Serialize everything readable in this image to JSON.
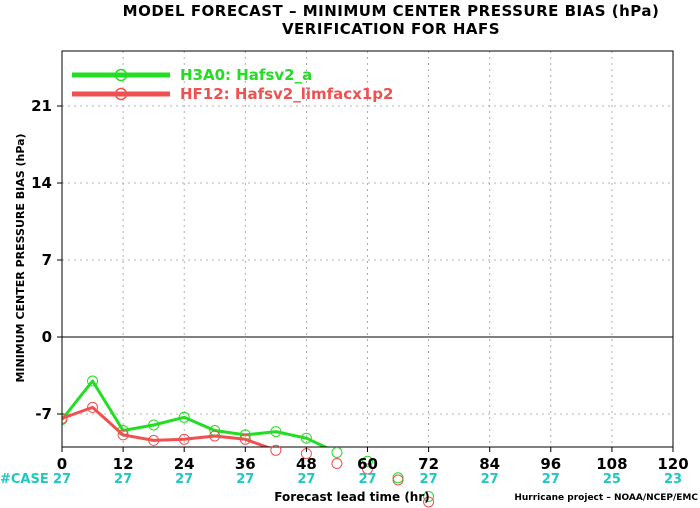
{
  "chart_data": {
    "type": "line",
    "title": "MODEL FORECAST – MINIMUM CENTER PRESSURE BIAS (hPa)",
    "subtitle": "VERIFICATION FOR HAFS",
    "xlabel": "Forecast lead time (hr)",
    "ylabel": "MINIMUM CENTER PRESSURE BIAS (hPa)",
    "xlim": [
      0,
      120
    ],
    "ylim": [
      -10,
      26
    ],
    "x_ticks": [
      0,
      12,
      24,
      36,
      48,
      60,
      72,
      84,
      96,
      108,
      120
    ],
    "y_ticks": [
      -7,
      0,
      7,
      14,
      21
    ],
    "y_tick_labels": [
      "-7",
      "0",
      "7",
      "14",
      "21"
    ],
    "grid": true,
    "legend_position": "top-left",
    "case_label": "#CASE",
    "case_counts": [
      "27",
      "27",
      "27",
      "27",
      "27",
      "27",
      "27",
      "27",
      "27",
      "25",
      "23"
    ],
    "credit": "Hurricane project – NOAA/NCEP/EMC",
    "series": [
      {
        "name": "H3A0:  Hafsv2_a",
        "color": "#22dd22",
        "x": [
          0,
          6,
          12,
          18,
          24,
          30,
          36,
          42,
          48,
          54,
          60,
          66,
          72
        ],
        "y": [
          -7.5,
          -4.0,
          -8.5,
          -8.0,
          -7.3,
          -8.5,
          -8.9,
          -8.6,
          -9.2,
          -10.5,
          -11.3,
          -12.8,
          -14.5
        ]
      },
      {
        "name": "HF12:  Hafsv2_limfacx1p2",
        "color": "#f05050",
        "x": [
          0,
          6,
          12,
          18,
          24,
          30,
          36,
          42,
          48,
          54,
          60,
          66,
          72
        ],
        "y": [
          -7.4,
          -6.4,
          -8.9,
          -9.4,
          -9.3,
          -9.0,
          -9.3,
          -10.3,
          -10.6,
          -11.5,
          -12.0,
          -13.0,
          -15.0
        ]
      }
    ]
  }
}
